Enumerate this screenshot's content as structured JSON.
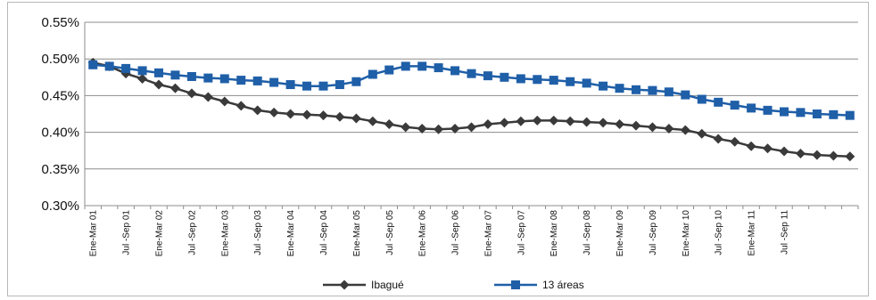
{
  "chart_data": {
    "type": "line",
    "title": "",
    "xlabel": "",
    "ylabel": "",
    "ylim": [
      0.3,
      0.55
    ],
    "yticks": [
      "0.30%",
      "0.35%",
      "0.40%",
      "0.45%",
      "0.50%",
      "0.55%"
    ],
    "ytick_values": [
      0.3,
      0.35,
      0.4,
      0.45,
      0.5,
      0.55
    ],
    "grid": "horizontal",
    "legend_position": "bottom",
    "x_labels": [
      "Ene-Mar 01",
      "Jul -Sep 01",
      "Ene-Mar 02",
      "Jul -Sep 02",
      "Ene-Mar 03",
      "Jul -Sep 03",
      "Ene-Mar 04",
      "Jul -Sep 04",
      "Ene-Mar 05",
      "Jul -Sep 05",
      "Ene-Mar 06",
      "Jul -Sep 06",
      "Ene-Mar 07",
      "Jul -Sep 07",
      "Ene-Mar 08",
      "Jul -Sep 08",
      "Ene-Mar 09",
      "Jul -Sep 09",
      "Ene-Mar 10",
      "Jul -Sep 10",
      "Ene-Mar 11",
      "Jul -Sep 11"
    ],
    "series": [
      {
        "name": "Ibagué",
        "color": "#3a3a3a",
        "marker": "diamond",
        "values": [
          0.495,
          0.49,
          0.48,
          0.473,
          0.465,
          0.46,
          0.453,
          0.448,
          0.442,
          0.436,
          0.43,
          0.427,
          0.425,
          0.424,
          0.423,
          0.421,
          0.419,
          0.415,
          0.411,
          0.407,
          0.405,
          0.404,
          0.405,
          0.407,
          0.411,
          0.413,
          0.415,
          0.416,
          0.416,
          0.415,
          0.414,
          0.413,
          0.411,
          0.409,
          0.407,
          0.405,
          0.403,
          0.398,
          0.391,
          0.387,
          0.381,
          0.378,
          0.374,
          0.371,
          0.369,
          0.368,
          0.367
        ]
      },
      {
        "name": "13 áreas",
        "color": "#1f5fa8",
        "marker": "square",
        "values": [
          0.492,
          0.49,
          0.487,
          0.484,
          0.481,
          0.478,
          0.476,
          0.474,
          0.473,
          0.471,
          0.47,
          0.468,
          0.465,
          0.463,
          0.463,
          0.465,
          0.469,
          0.479,
          0.485,
          0.49,
          0.49,
          0.488,
          0.484,
          0.48,
          0.477,
          0.475,
          0.473,
          0.472,
          0.471,
          0.469,
          0.467,
          0.463,
          0.46,
          0.458,
          0.457,
          0.455,
          0.451,
          0.445,
          0.441,
          0.437,
          0.433,
          0.43,
          0.428,
          0.427,
          0.425,
          0.424,
          0.423
        ]
      }
    ]
  }
}
